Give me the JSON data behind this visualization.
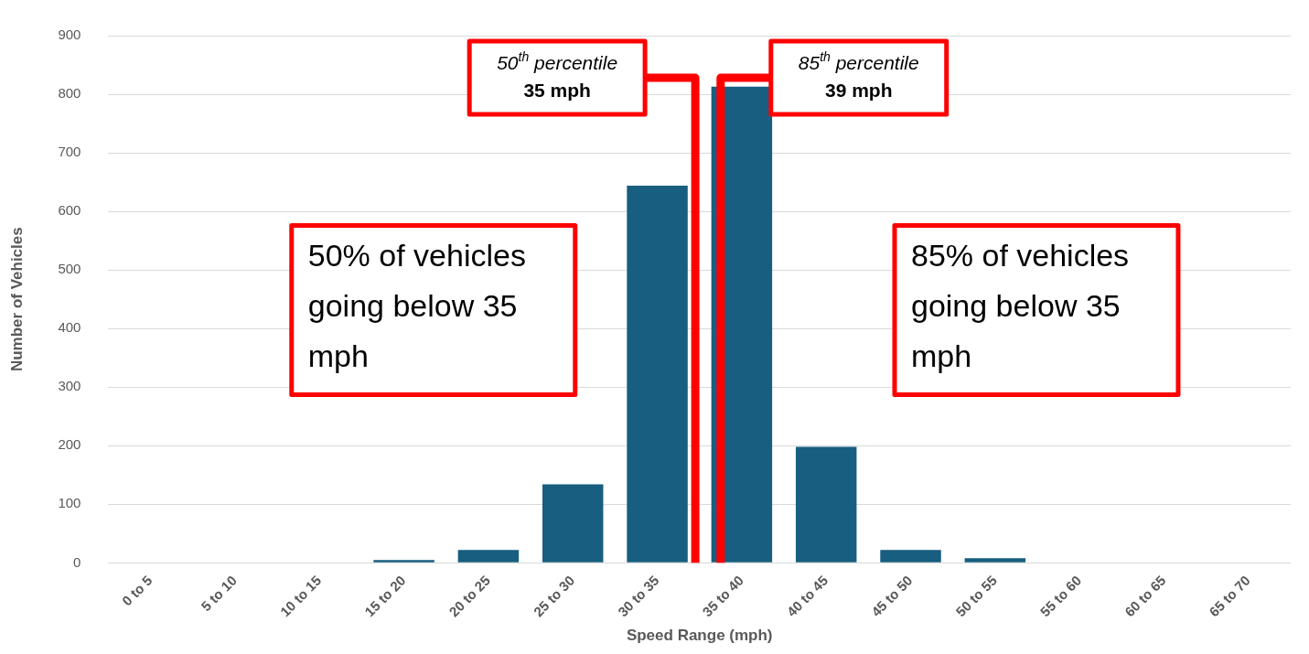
{
  "chart_data": {
    "type": "bar",
    "xlabel": "Speed Range (mph)",
    "ylabel": "Number of Vehicles",
    "categories": [
      "0 to 5",
      "5 to 10",
      "10 to 15",
      "15 to 20",
      "20 to 25",
      "25 to 30",
      "30 to 35",
      "35 to 40",
      "40 to 45",
      "45 to 50",
      "50 to 55",
      "55 to 60",
      "60 to 65",
      "65 to 70"
    ],
    "values": [
      0,
      0,
      0,
      5,
      22,
      134,
      644,
      813,
      198,
      22,
      8,
      0,
      0,
      0
    ],
    "color": "#175e80",
    "ylim": [
      0,
      900
    ],
    "yticks": [
      0,
      100,
      200,
      300,
      400,
      500,
      600,
      700,
      800,
      900
    ],
    "grid": "y",
    "legend": false,
    "ref_lines": [
      {
        "axis": "x",
        "value": "30 to 35",
        "label": "50$^{th}$ percentile\n35 mph",
        "color": "#ff0000"
      },
      {
        "axis": "x",
        "value": "35 to 40",
        "label": "85$^{th}$ percentile\n39 mph",
        "color": "#ff0000"
      }
    ],
    "annotations": [
      "50% of vehicles going below 35 mph",
      "85% of vehicles going below 35 mph"
    ]
  }
}
